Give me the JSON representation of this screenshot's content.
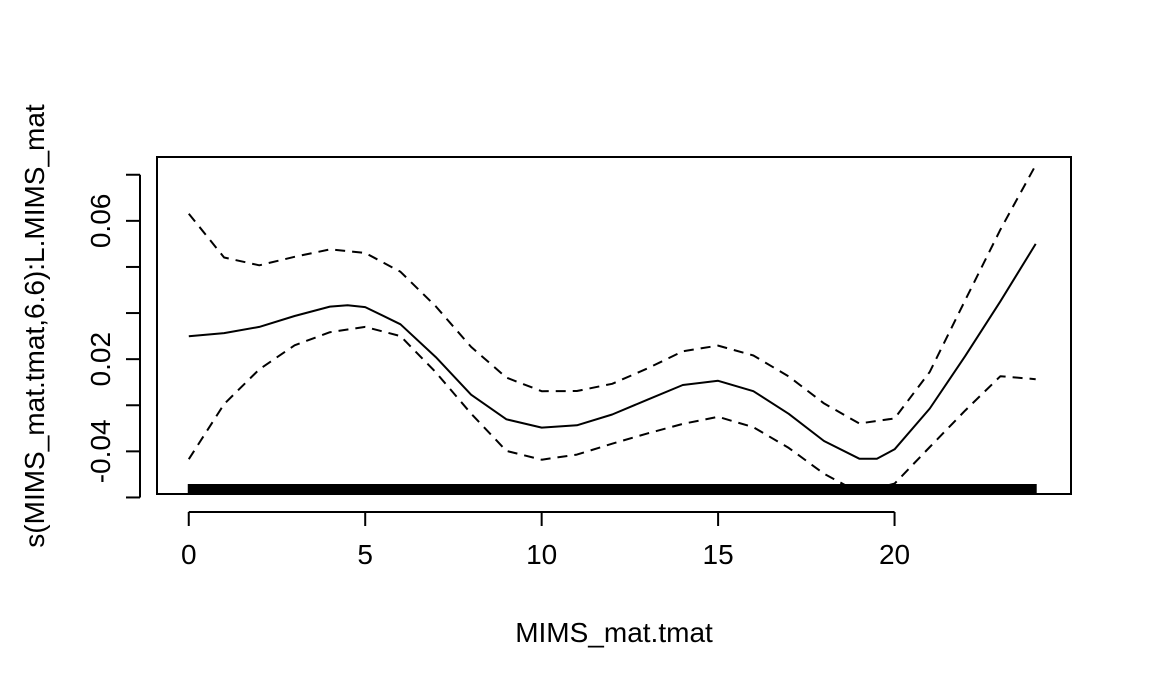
{
  "chart_data": {
    "type": "line",
    "title": "",
    "xlabel": "MIMS_mat.tmat",
    "ylabel": "s(MIMS_mat.tmat,6.6):L.MIMS_mat",
    "xlim": [
      -0.9,
      25
    ],
    "ylim": [
      -0.0585,
      0.0877
    ],
    "x_ticks": [
      0,
      5,
      10,
      15,
      20
    ],
    "x_tick_labels": [
      "0",
      "5",
      "10",
      "15",
      "20"
    ],
    "y_ticks": [
      -0.06,
      -0.04,
      -0.02,
      0.0,
      0.02,
      0.04,
      0.06,
      0.08
    ],
    "y_tick_labels": [
      "",
      "-0.04",
      "",
      "0.02",
      "",
      "",
      "0.06",
      ""
    ],
    "grid": false,
    "legend": "none",
    "series": [
      {
        "style": "solid",
        "x": [
          0,
          1,
          2,
          3,
          4,
          4.5,
          5,
          6,
          7,
          8,
          9,
          10,
          11,
          12,
          13,
          14,
          15,
          16,
          17,
          18,
          19,
          19.5,
          20,
          21,
          22,
          23,
          24
        ],
        "y": [
          0.0099,
          0.0113,
          0.014,
          0.0187,
          0.0228,
          0.0234,
          0.0226,
          0.0151,
          0.0009,
          -0.0154,
          -0.0261,
          -0.0297,
          -0.0287,
          -0.024,
          -0.0176,
          -0.0112,
          -0.0094,
          -0.0139,
          -0.0237,
          -0.0355,
          -0.0432,
          -0.0432,
          -0.0391,
          -0.0214,
          0.0013,
          0.0251,
          0.05
        ]
      },
      {
        "style": "dashed",
        "x": [
          0,
          1,
          2,
          3,
          4,
          5,
          6,
          7,
          8,
          9,
          10,
          11,
          12,
          13,
          14,
          15,
          16,
          17,
          18,
          19,
          20,
          21,
          22,
          23,
          24
        ],
        "y": [
          0.0631,
          0.0441,
          0.0407,
          0.0444,
          0.0476,
          0.0461,
          0.0379,
          0.0229,
          0.0053,
          -0.008,
          -0.0139,
          -0.0138,
          -0.0107,
          -0.004,
          0.0034,
          0.0059,
          0.0016,
          -0.0075,
          -0.0192,
          -0.0279,
          -0.0257,
          -0.0055,
          0.0255,
          0.0562,
          0.0842
        ]
      },
      {
        "style": "dashed",
        "x": [
          0,
          1,
          2,
          3,
          4,
          5,
          6,
          7,
          8,
          9,
          10,
          11,
          12,
          13,
          14,
          15,
          16,
          17,
          18,
          19,
          20,
          21,
          22,
          23,
          24
        ],
        "y": [
          -0.0434,
          -0.0195,
          -0.0044,
          0.006,
          0.0117,
          0.014,
          0.01,
          -0.0057,
          -0.0236,
          -0.0398,
          -0.0436,
          -0.0414,
          -0.0367,
          -0.0322,
          -0.0281,
          -0.025,
          -0.0295,
          -0.0385,
          -0.0497,
          -0.058,
          -0.054,
          -0.0381,
          -0.0223,
          -0.0074,
          -0.0087
        ]
      }
    ],
    "rug": {
      "x_from": 0,
      "x_to": 24,
      "note": "dense rug marks along the x axis"
    }
  }
}
